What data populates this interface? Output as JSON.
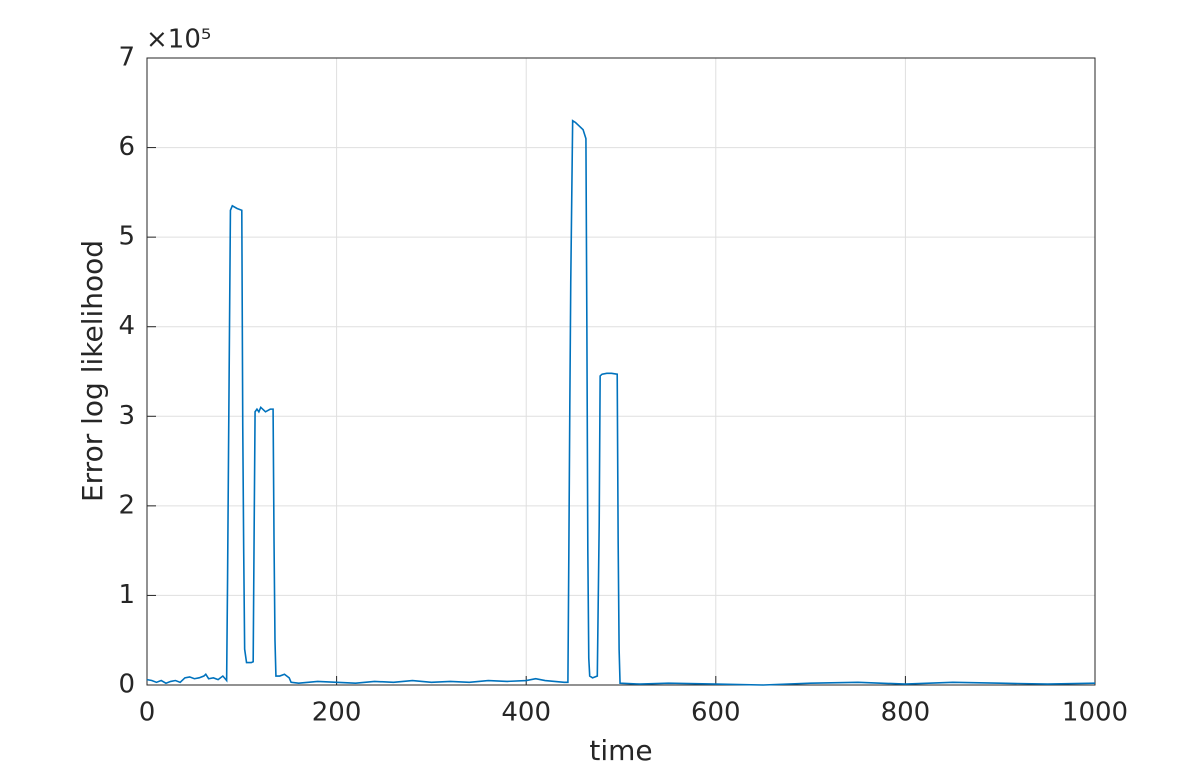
{
  "chart_data": {
    "type": "line",
    "xlabel": "time",
    "ylabel": "Error log likelihood",
    "y_multiplier": "×10⁵",
    "x": [
      0,
      5,
      10,
      15,
      20,
      25,
      30,
      35,
      40,
      45,
      50,
      55,
      60,
      62,
      65,
      70,
      75,
      80,
      84,
      85,
      86,
      88,
      90,
      95,
      100,
      101,
      102,
      103,
      105,
      110,
      112,
      113,
      114,
      116,
      118,
      120,
      125,
      130,
      133,
      134,
      135,
      136,
      140,
      145,
      150,
      152,
      160,
      180,
      200,
      220,
      240,
      260,
      280,
      300,
      320,
      340,
      360,
      380,
      400,
      410,
      420,
      430,
      440,
      444,
      445,
      446,
      447,
      449,
      452,
      455,
      460,
      463,
      464,
      465,
      466,
      467,
      470,
      475,
      477,
      478,
      480,
      485,
      490,
      496,
      497,
      498,
      499,
      520,
      550,
      600,
      650,
      700,
      750,
      800,
      850,
      900,
      950,
      1000
    ],
    "values": [
      0.06,
      0.05,
      0.03,
      0.05,
      0.02,
      0.04,
      0.05,
      0.03,
      0.08,
      0.09,
      0.07,
      0.08,
      0.1,
      0.12,
      0.07,
      0.08,
      0.06,
      0.1,
      0.05,
      1.2,
      2.6,
      5.3,
      5.35,
      5.32,
      5.3,
      2.9,
      1.5,
      0.4,
      0.25,
      0.25,
      0.26,
      1.7,
      3.05,
      3.08,
      3.05,
      3.1,
      3.05,
      3.08,
      3.08,
      1.6,
      0.5,
      0.1,
      0.1,
      0.12,
      0.08,
      0.03,
      0.02,
      0.04,
      0.03,
      0.02,
      0.04,
      0.03,
      0.05,
      0.03,
      0.04,
      0.03,
      0.05,
      0.04,
      0.05,
      0.07,
      0.05,
      0.04,
      0.03,
      0.03,
      1.5,
      3.1,
      4.5,
      6.3,
      6.28,
      6.25,
      6.2,
      6.1,
      4.0,
      1.5,
      0.3,
      0.1,
      0.08,
      0.1,
      1.8,
      3.45,
      3.47,
      3.48,
      3.48,
      3.47,
      1.6,
      0.4,
      0.02,
      0.01,
      0.02,
      0.01,
      0.0,
      0.02,
      0.03,
      0.01,
      0.03,
      0.02,
      0.01,
      0.02
    ],
    "color": "#0072bd",
    "xlim": [
      0,
      1000
    ],
    "xticks": [
      0,
      200,
      400,
      600,
      800,
      1000
    ],
    "ylim": [
      0,
      7
    ],
    "yticks": [
      0,
      1,
      2,
      3,
      4,
      5,
      6,
      7
    ],
    "grid": true
  }
}
